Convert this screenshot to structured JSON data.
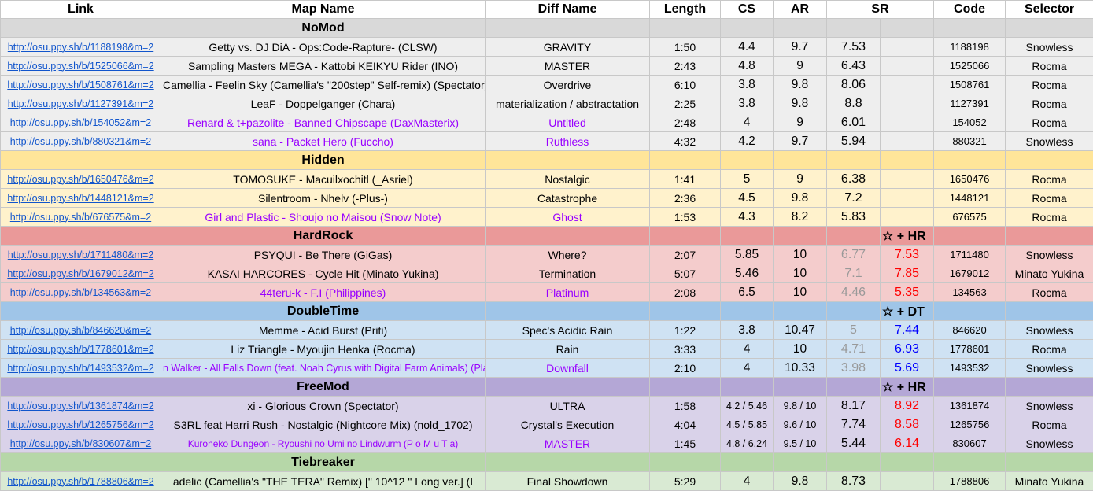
{
  "headers": [
    "Link",
    "Map Name",
    "Diff Name",
    "Length",
    "CS",
    "AR",
    "SR",
    "Code",
    "Selector"
  ],
  "sections": [
    {
      "name": "NoMod",
      "marker": "",
      "rows": [
        {
          "link": "http://osu.ppy.sh/b/1188198&m=2",
          "map": "Getty vs. DJ DiA - Ops:Code-Rapture- (CLSW)",
          "diff": "GRAVITY",
          "length": "1:50",
          "cs": "4.4",
          "ar": "9.7",
          "sr": "7.53",
          "sr2": "",
          "code": "1188198",
          "selector": "Snowless",
          "purple": false
        },
        {
          "link": "http://osu.ppy.sh/b/1525066&m=2",
          "map": "Sampling Masters MEGA - Kattobi KEIKYU Rider (INO)",
          "diff": "MASTER",
          "length": "2:43",
          "cs": "4.8",
          "ar": "9",
          "sr": "6.43",
          "sr2": "",
          "code": "1525066",
          "selector": "Rocma",
          "purple": false
        },
        {
          "link": "http://osu.ppy.sh/b/1508761&m=2",
          "map": "Camellia - Feelin Sky (Camellia's \"200step\" Self-remix) (Spectator)",
          "diff": "Overdrive",
          "length": "6:10",
          "cs": "3.8",
          "ar": "9.8",
          "sr": "8.06",
          "sr2": "",
          "code": "1508761",
          "selector": "Rocma",
          "purple": false
        },
        {
          "link": "http://osu.ppy.sh/b/1127391&m=2",
          "map": "LeaF - Doppelganger (Chara)",
          "diff": "materialization / abstractation",
          "length": "2:25",
          "cs": "3.8",
          "ar": "9.8",
          "sr": "8.8",
          "sr2": "",
          "code": "1127391",
          "selector": "Rocma",
          "purple": false
        },
        {
          "link": "http://osu.ppy.sh/b/154052&m=2",
          "map": "Renard & t+pazolite - Banned Chipscape (DaxMasterix)",
          "diff": "Untitled",
          "length": "2:48",
          "cs": "4",
          "ar": "9",
          "sr": "6.01",
          "sr2": "",
          "code": "154052",
          "selector": "Rocma",
          "purple": true
        },
        {
          "link": "http://osu.ppy.sh/b/880321&m=2",
          "map": "sana - Packet Hero (Fuccho)",
          "diff": "Ruthless",
          "length": "4:32",
          "cs": "4.2",
          "ar": "9.7",
          "sr": "5.94",
          "sr2": "",
          "code": "880321",
          "selector": "Snowless",
          "purple": true
        }
      ]
    },
    {
      "name": "Hidden",
      "marker": "",
      "rows": [
        {
          "link": "http://osu.ppy.sh/b/1650476&m=2",
          "map": "TOMOSUKE - Macuilxochitl (_Asriel)",
          "diff": "Nostalgic",
          "length": "1:41",
          "cs": "5",
          "ar": "9",
          "sr": "6.38",
          "sr2": "",
          "code": "1650476",
          "selector": "Rocma",
          "purple": false
        },
        {
          "link": "http://osu.ppy.sh/b/1448121&m=2",
          "map": "Silentroom - Nhelv (-Plus-)",
          "diff": "Catastrophe",
          "length": "2:36",
          "cs": "4.5",
          "ar": "9.8",
          "sr": "7.2",
          "sr2": "",
          "code": "1448121",
          "selector": "Rocma",
          "purple": false
        },
        {
          "link": "http://osu.ppy.sh/b/676575&m=2",
          "map": "Girl and Plastic - Shoujo no Maisou (Snow Note)",
          "diff": "Ghost",
          "length": "1:53",
          "cs": "4.3",
          "ar": "8.2",
          "sr": "5.83",
          "sr2": "",
          "code": "676575",
          "selector": "Rocma",
          "purple": true
        }
      ]
    },
    {
      "name": "HardRock",
      "marker": "☆ + HR",
      "rows": [
        {
          "link": "http://osu.ppy.sh/b/1711480&m=2",
          "map": "PSYQUI - Be There (GiGas)",
          "diff": "Where?",
          "length": "2:07",
          "cs": "5.85",
          "ar": "10",
          "sr": "6.77",
          "sr2": "7.53",
          "code": "1711480",
          "selector": "Snowless",
          "purple": false
        },
        {
          "link": "http://osu.ppy.sh/b/1679012&m=2",
          "map": "KASAI HARCORES - Cycle Hit (Minato Yukina)",
          "diff": "Termination",
          "length": "5:07",
          "cs": "5.46",
          "ar": "10",
          "sr": "7.1",
          "sr2": "7.85",
          "code": "1679012",
          "selector": "Minato Yukina",
          "purple": false
        },
        {
          "link": "http://osu.ppy.sh/b/134563&m=2",
          "map": "44teru-k - F.I (Philippines)",
          "diff": "Platinum",
          "length": "2:08",
          "cs": "6.5",
          "ar": "10",
          "sr": "4.46",
          "sr2": "5.35",
          "code": "134563",
          "selector": "Rocma",
          "purple": true
        }
      ]
    },
    {
      "name": "DoubleTime",
      "marker": "☆ + DT",
      "rows": [
        {
          "link": "http://osu.ppy.sh/b/846620&m=2",
          "map": "Memme - Acid Burst (Priti)",
          "diff": "Spec's Acidic Rain",
          "length": "1:22",
          "cs": "3.8",
          "ar": "10.47",
          "sr": "5",
          "sr2": "7.44",
          "code": "846620",
          "selector": "Snowless",
          "purple": false
        },
        {
          "link": "http://osu.ppy.sh/b/1778601&m=2",
          "map": "Liz Triangle - Myoujin Henka (Rocma)",
          "diff": "Rain",
          "length": "3:33",
          "cs": "4",
          "ar": "10",
          "sr": "4.71",
          "sr2": "6.93",
          "code": "1778601",
          "selector": "Rocma",
          "purple": false
        },
        {
          "link": "http://osu.ppy.sh/b/1493532&m=2",
          "map": "n Walker - All Falls Down (feat. Noah Cyrus with Digital Farm Animals) (Plaudit",
          "diff": "Downfall",
          "length": "2:10",
          "cs": "4",
          "ar": "10.33",
          "sr": "3.98",
          "sr2": "5.69",
          "code": "1493532",
          "selector": "Snowless",
          "purple": true
        }
      ]
    },
    {
      "name": "FreeMod",
      "marker": "☆ + HR",
      "rows": [
        {
          "link": "http://osu.ppy.sh/b/1361874&m=2",
          "map": "xi - Glorious Crown (Spectator)",
          "diff": "ULTRA",
          "length": "1:58",
          "cs": "4.2 / 5.46",
          "ar": "9.8 / 10",
          "sr": "8.17",
          "sr2": "8.92",
          "code": "1361874",
          "selector": "Snowless",
          "purple": false
        },
        {
          "link": "http://osu.ppy.sh/b/1265756&m=2",
          "map": "S3RL feat Harri Rush - Nostalgic (Nightcore Mix) (nold_1702)",
          "diff": "Crystal's Execution",
          "length": "4:04",
          "cs": "4.5 / 5.85",
          "ar": "9.6 / 10",
          "sr": "7.74",
          "sr2": "8.58",
          "code": "1265756",
          "selector": "Rocma",
          "purple": false
        },
        {
          "link": "http://osu.ppy.sh/b/830607&m=2",
          "map": "Kuroneko Dungeon - Ryoushi no Umi no Lindwurm (P o M u T a)",
          "diff": "MASTER",
          "length": "1:45",
          "cs": "4.8 / 6.24",
          "ar": "9.5 / 10",
          "sr": "5.44",
          "sr2": "6.14",
          "code": "830607",
          "selector": "Snowless",
          "purple": true
        }
      ]
    },
    {
      "name": "Tiebreaker",
      "marker": "",
      "rows": [
        {
          "link": "http://osu.ppy.sh/b/1788806&m=2",
          "map": "adelic (Camellia's \"THE TERA\" Remix) [\" 10^12 \" Long ver.] (I",
          "diff": "Final Showdown",
          "length": "5:29",
          "cs": "4",
          "ar": "9.8",
          "sr": "8.73",
          "sr2": "",
          "code": "1788806",
          "selector": "Minato Yukina",
          "purple": false
        }
      ]
    }
  ],
  "colors": {
    "link": "#1155cc",
    "purple": "#9900ff",
    "grey_sr": "#999999",
    "hr_sr": "#ff0000",
    "dt_sr": "#0000ff"
  }
}
